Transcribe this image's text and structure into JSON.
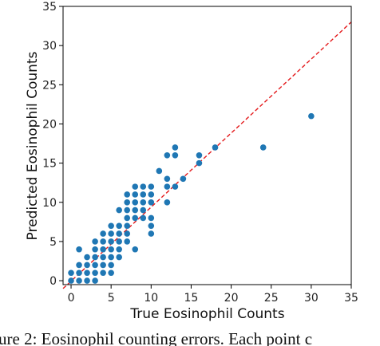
{
  "chart_data": {
    "type": "scatter",
    "title": "",
    "xlabel": "True Eosinophil Counts",
    "ylabel": "Predicted Eosinophil Counts",
    "xlim": [
      -1,
      35
    ],
    "ylim": [
      -0.5,
      35
    ],
    "xticks": [
      0,
      5,
      10,
      15,
      20,
      25,
      30,
      35
    ],
    "yticks": [
      0,
      5,
      10,
      15,
      20,
      25,
      30,
      35
    ],
    "grid": false,
    "point_color": "#1f77b4",
    "reference_line": {
      "style": "dashed",
      "color": "#e41a1c",
      "from": [
        -1,
        -1
      ],
      "to": [
        35,
        33
      ]
    },
    "points": [
      [
        0,
        0
      ],
      [
        0,
        1
      ],
      [
        1,
        0
      ],
      [
        1,
        1
      ],
      [
        1,
        2
      ],
      [
        1,
        4
      ],
      [
        2,
        0
      ],
      [
        2,
        1
      ],
      [
        2,
        2
      ],
      [
        2,
        3
      ],
      [
        3,
        0
      ],
      [
        3,
        1
      ],
      [
        3,
        2
      ],
      [
        3,
        3
      ],
      [
        3,
        4
      ],
      [
        3,
        5
      ],
      [
        4,
        1
      ],
      [
        4,
        2
      ],
      [
        4,
        3
      ],
      [
        4,
        4
      ],
      [
        4,
        5
      ],
      [
        4,
        6
      ],
      [
        5,
        1
      ],
      [
        5,
        2
      ],
      [
        5,
        3
      ],
      [
        5,
        4
      ],
      [
        5,
        5
      ],
      [
        5,
        6
      ],
      [
        5,
        7
      ],
      [
        6,
        3
      ],
      [
        6,
        4
      ],
      [
        6,
        5
      ],
      [
        6,
        6
      ],
      [
        6,
        7
      ],
      [
        6,
        9
      ],
      [
        7,
        5
      ],
      [
        7,
        6
      ],
      [
        7,
        7
      ],
      [
        7,
        8
      ],
      [
        7,
        9
      ],
      [
        7,
        10
      ],
      [
        7,
        11
      ],
      [
        8,
        4
      ],
      [
        8,
        8
      ],
      [
        8,
        9
      ],
      [
        8,
        10
      ],
      [
        8,
        11
      ],
      [
        8,
        12
      ],
      [
        9,
        8
      ],
      [
        9,
        9
      ],
      [
        9,
        10
      ],
      [
        9,
        11
      ],
      [
        9,
        12
      ],
      [
        10,
        6
      ],
      [
        10,
        7
      ],
      [
        10,
        8
      ],
      [
        10,
        10
      ],
      [
        10,
        11
      ],
      [
        10,
        12
      ],
      [
        11,
        14
      ],
      [
        12,
        10
      ],
      [
        12,
        12
      ],
      [
        12,
        13
      ],
      [
        12,
        16
      ],
      [
        13,
        12
      ],
      [
        13,
        16
      ],
      [
        13,
        17
      ],
      [
        14,
        13
      ],
      [
        16,
        15
      ],
      [
        16,
        16
      ],
      [
        18,
        17
      ],
      [
        24,
        17
      ],
      [
        30,
        21
      ]
    ]
  },
  "caption": {
    "text": "ure 2: Eosinophil counting errors. Each point c"
  }
}
